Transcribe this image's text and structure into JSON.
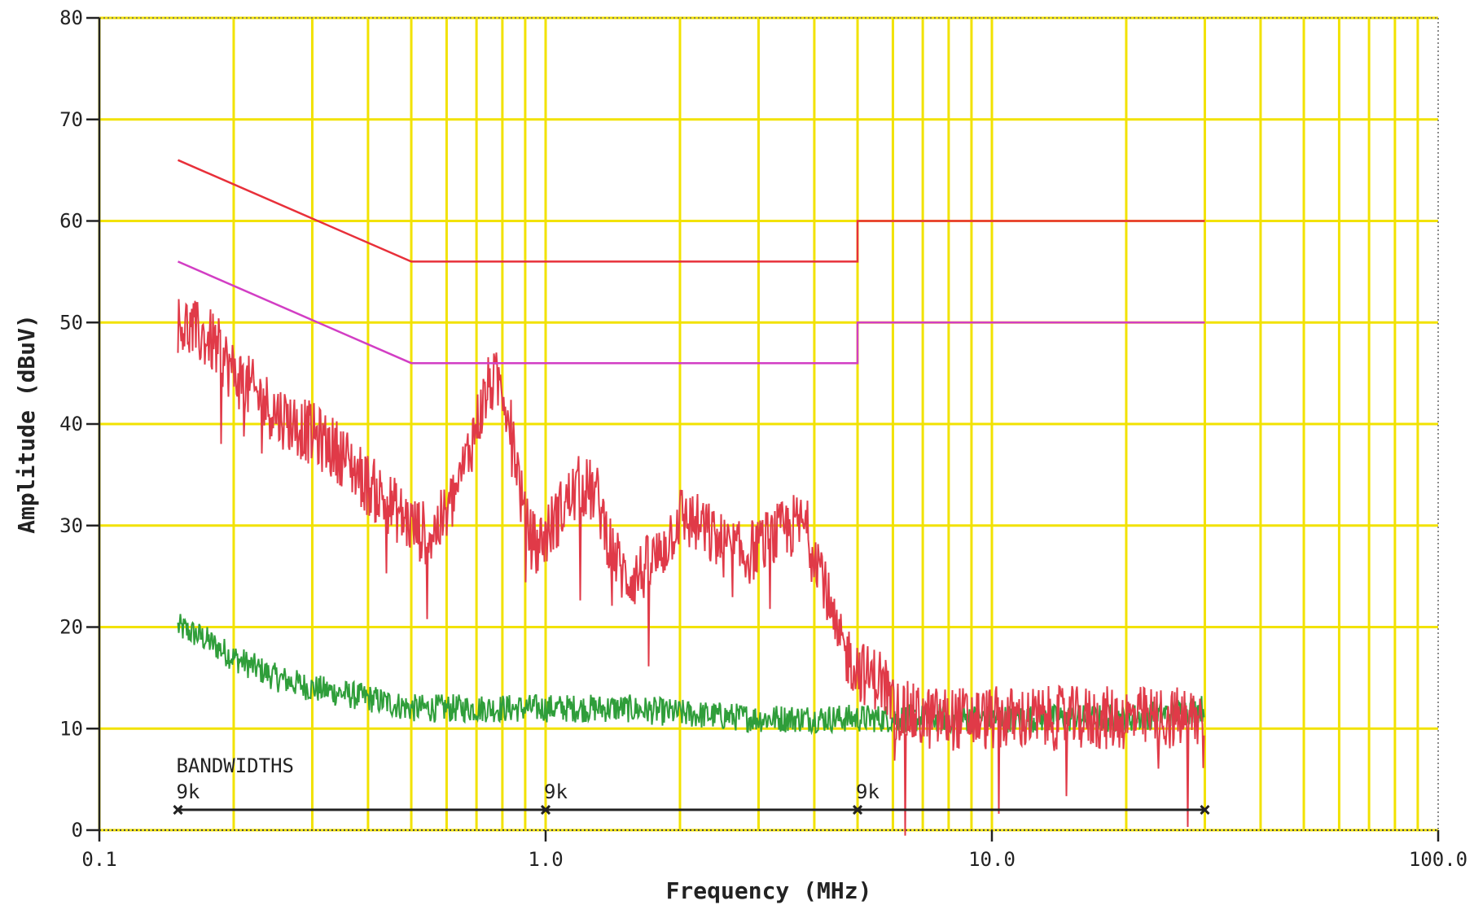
{
  "chart_data": {
    "type": "line",
    "title": "",
    "xlabel": "Frequency (MHz)",
    "ylabel": "Amplitude (dBuV)",
    "x_scale": "log",
    "xlim": [
      0.1,
      100.0
    ],
    "ylim": [
      0,
      80
    ],
    "grid": true,
    "x_ticks": [
      "0.1",
      "1.0",
      "10.0",
      "100.0"
    ],
    "x_tick_values": [
      0.1,
      1.0,
      10.0,
      100.0
    ],
    "y_ticks": [
      0,
      10,
      20,
      30,
      40,
      50,
      60,
      70,
      80
    ],
    "colors": {
      "grid": "#f2e200",
      "limit_upper": "#e8303a",
      "limit_lower": "#d23ec4",
      "signal_red": "#e03a48",
      "signal_green": "#2f9e3a",
      "axis": "#222222"
    },
    "series": [
      {
        "style": "limit",
        "color_key": "limit_upper",
        "x": [
          0.15,
          0.5,
          5.0,
          5.0,
          30.0
        ],
        "y": [
          66,
          56,
          56,
          60,
          60
        ]
      },
      {
        "style": "limit",
        "color_key": "limit_lower",
        "x": [
          0.15,
          0.5,
          5.0,
          5.0,
          30.0
        ],
        "y": [
          56,
          46,
          46,
          50,
          50
        ]
      },
      {
        "style": "noisy",
        "color_key": "signal_red",
        "x": [
          0.15,
          0.18,
          0.2,
          0.25,
          0.3,
          0.35,
          0.4,
          0.45,
          0.5,
          0.55,
          0.6,
          0.65,
          0.7,
          0.75,
          0.8,
          0.85,
          0.9,
          0.95,
          1.0,
          1.1,
          1.2,
          1.3,
          1.4,
          1.5,
          1.6,
          1.8,
          2.0,
          2.2,
          2.5,
          2.8,
          3.0,
          3.3,
          3.6,
          3.8,
          4.0,
          4.2,
          4.4,
          4.6,
          4.8,
          5.0,
          5.3,
          5.6,
          5.8,
          6.0,
          7.0,
          8.0,
          10.0,
          15.0,
          20.0,
          30.0
        ],
        "y": [
          50,
          48,
          45,
          41,
          39,
          37,
          34,
          32,
          30,
          29,
          31,
          35,
          40,
          44,
          44,
          38,
          30,
          28,
          29,
          32,
          34,
          33,
          28,
          25,
          25,
          27,
          31,
          30,
          28,
          27,
          28,
          29,
          30,
          30,
          28,
          25,
          20,
          18,
          17,
          16,
          15,
          15,
          14,
          12,
          11,
          11,
          11,
          11,
          11,
          11
        ]
      },
      {
        "style": "noisy",
        "color_key": "signal_green",
        "x": [
          0.15,
          0.17,
          0.2,
          0.25,
          0.3,
          0.4,
          0.5,
          0.7,
          1.0,
          1.5,
          2.0,
          3.0,
          5.0,
          7.0,
          10.0,
          20.0,
          30.0
        ],
        "y": [
          20,
          19,
          17,
          15,
          14,
          13,
          12,
          12,
          12,
          12,
          11.5,
          11,
          11,
          11,
          11,
          11,
          12
        ]
      }
    ],
    "annotations": {
      "bandwidths_label": "BANDWIDTHS",
      "markers": [
        {
          "x": 0.15,
          "label": "9k"
        },
        {
          "x": 1.0,
          "label": "9k"
        },
        {
          "x": 5.0,
          "label": "9k"
        }
      ],
      "bar_end_x": 30.0,
      "bar_y": 2
    }
  }
}
